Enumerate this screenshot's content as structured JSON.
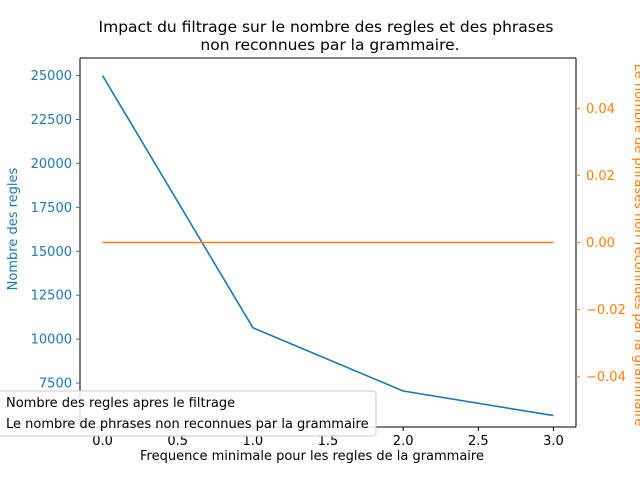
{
  "chart_data": {
    "type": "line",
    "title": [
      "Impact du filtrage sur le nombre des regles et des phrases",
      "non reconnues par la grammaire."
    ],
    "xlabel": "Frequence minimale pour les regles de la grammaire",
    "ylabel_left": "Nombre des regles",
    "ylabel_right": "Le nombre de phrases non reconnues par la grammaire",
    "x": [
      0.0,
      1.0,
      2.0,
      3.0
    ],
    "x_ticks": [
      "0.0",
      "0.5",
      "1.0",
      "1.5",
      "2.0",
      "2.5",
      "3.0"
    ],
    "y_left_ticks": [
      "7500",
      "10000",
      "12500",
      "15000",
      "17500",
      "20000",
      "22500",
      "25000"
    ],
    "y_right_ticks": [
      "−0.04",
      "−0.02",
      "0.00",
      "0.02",
      "0.04"
    ],
    "series": [
      {
        "name": "Nombre des regles apres le filtrage",
        "axis": "left",
        "color": "#1f77b4",
        "values": [
          25000,
          10650,
          7050,
          5650
        ]
      },
      {
        "name": "Le nombre de phrases non reconnues par la grammaire",
        "axis": "right",
        "color": "#ff7f0e",
        "values": [
          0,
          0,
          0,
          0
        ]
      }
    ],
    "legend": [
      "Nombre des regles apres le filtrage",
      "Le nombre de phrases non reconnues par la grammaire"
    ],
    "legend_location": "lower-left",
    "grid": false
  }
}
